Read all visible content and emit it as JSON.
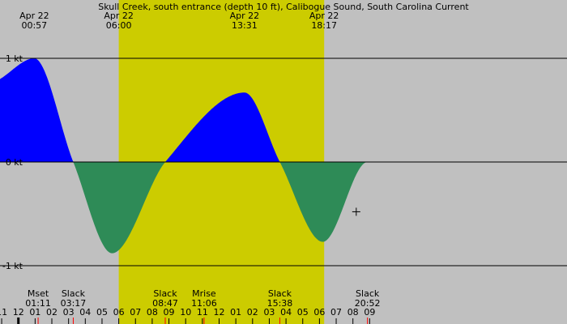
{
  "chart_data": {
    "type": "area",
    "title": "Skull Creek, south entrance (depth 10 ft), Calibogue Sound, South Carolina Current",
    "ylim": [
      -1,
      1
    ],
    "y_ticks": [
      {
        "value": 1,
        "label": "1 kt"
      },
      {
        "value": 0,
        "label": "0 kt"
      },
      {
        "value": -1,
        "label": "-1 kt"
      }
    ],
    "xlim_hours": [
      -1.1,
      32.8
    ],
    "daylight_hours": [
      6.0,
      18.28
    ],
    "colors": {
      "night": "#c0c0c0",
      "day": "#cccc00",
      "flood": "#0000ff",
      "ebb": "#2e8b57"
    },
    "events_top": [
      {
        "hour": 0.95,
        "date": "Apr 22",
        "time": "00:57"
      },
      {
        "hour": 6.0,
        "date": "Apr 22",
        "time": "06:00"
      },
      {
        "hour": 13.52,
        "date": "Apr 22",
        "time": "13:31"
      },
      {
        "hour": 18.28,
        "date": "Apr 22",
        "time": "18:17"
      }
    ],
    "events_bottom": [
      {
        "hour": 1.18,
        "name": "Mset",
        "time": "01:11"
      },
      {
        "hour": 3.28,
        "name": "Slack",
        "time": "03:17"
      },
      {
        "hour": 8.78,
        "name": "Slack",
        "time": "08:47"
      },
      {
        "hour": 11.1,
        "name": "Mrise",
        "time": "11:06"
      },
      {
        "hour": 15.63,
        "name": "Slack",
        "time": "15:38"
      },
      {
        "hour": 20.87,
        "name": "Slack",
        "time": "20:52"
      }
    ],
    "hour_ticks": [
      "11",
      "12",
      "01",
      "02",
      "03",
      "04",
      "05",
      "06",
      "07",
      "08",
      "09",
      "10",
      "11",
      "12",
      "01",
      "02",
      "03",
      "04",
      "05",
      "06",
      "07",
      "08",
      "09"
    ],
    "hour_ticks_start": -1,
    "current_knots": [
      {
        "x": -1.1,
        "y": 0.8
      },
      {
        "x": 0.95,
        "y": 1.0
      },
      {
        "x": 3.28,
        "y": 0.0
      },
      {
        "x": 5.6,
        "y": -0.88
      },
      {
        "x": 8.78,
        "y": 0.0
      },
      {
        "x": 13.52,
        "y": 0.67
      },
      {
        "x": 15.63,
        "y": 0.0
      },
      {
        "x": 18.2,
        "y": -0.77
      },
      {
        "x": 20.87,
        "y": 0.0
      },
      {
        "x": 32.8,
        "y": 0.0
      }
    ],
    "marker": {
      "hour": 20.2,
      "value": -0.48
    }
  }
}
